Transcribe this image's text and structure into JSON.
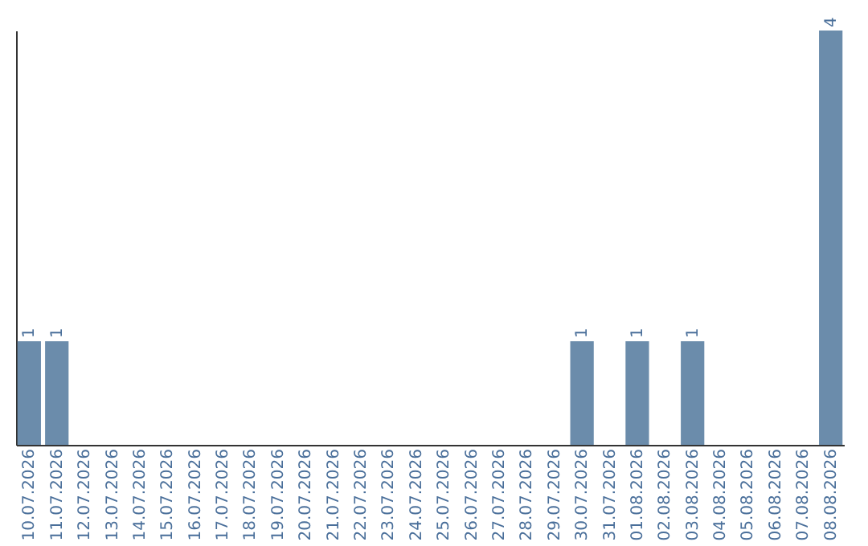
{
  "chart_data": {
    "type": "bar",
    "categories": [
      "10.07.2026",
      "11.07.2026",
      "12.07.2026",
      "13.07.2026",
      "14.07.2026",
      "15.07.2026",
      "16.07.2026",
      "17.07.2026",
      "18.07.2026",
      "19.07.2026",
      "20.07.2026",
      "21.07.2026",
      "22.07.2026",
      "23.07.2026",
      "24.07.2026",
      "25.07.2026",
      "26.07.2026",
      "27.07.2026",
      "28.07.2026",
      "29.07.2026",
      "30.07.2026",
      "31.07.2026",
      "01.08.2026",
      "02.08.2026",
      "03.08.2026",
      "04.08.2026",
      "05.08.2026",
      "06.08.2026",
      "07.08.2026",
      "08.08.2026"
    ],
    "values": [
      1,
      1,
      null,
      null,
      null,
      null,
      null,
      null,
      null,
      null,
      null,
      null,
      null,
      null,
      null,
      null,
      null,
      null,
      null,
      null,
      1,
      null,
      1,
      null,
      1,
      null,
      null,
      null,
      null,
      4
    ],
    "color": "#6b8cab",
    "data_labels": true,
    "tick_labels": "x",
    "grid": false
  }
}
